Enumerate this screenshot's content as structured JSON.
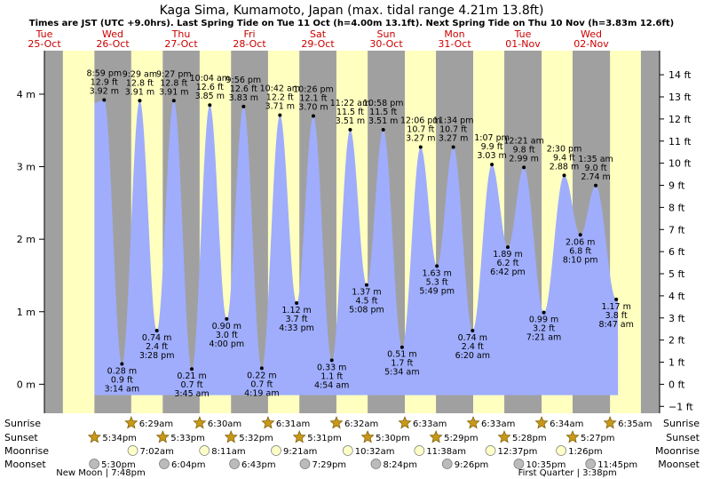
{
  "chart_data": {
    "type": "area",
    "title": "Kaga Sima, Kumamoto, Japan (max. tidal range 4.21m 13.8ft)",
    "subtitle": "Times are JST (UTC +9.0hrs). Last Spring Tide on Tue 11 Oct (h=4.00m 13.1ft). Next Spring Tide on Thu 10 Nov (h=3.83m 12.6ft)",
    "x_unit": "hours from 00:00 Tue 25-Oct",
    "xlim": [
      0,
      216
    ],
    "ylim_m": [
      -0.4,
      4.6
    ],
    "ylim_ft": [
      -1.31,
      15.09
    ],
    "y_ticks_m": [
      {
        "v": 0,
        "label": "0 m"
      },
      {
        "v": 1,
        "label": "1 m"
      },
      {
        "v": 2,
        "label": "2 m"
      },
      {
        "v": 3,
        "label": "3 m"
      },
      {
        "v": 4,
        "label": "4 m"
      }
    ],
    "y_ticks_ft": [
      {
        "v": -1,
        "label": "−1 ft"
      },
      {
        "v": 0,
        "label": "0 ft"
      },
      {
        "v": 1,
        "label": "1 ft"
      },
      {
        "v": 2,
        "label": "2 ft"
      },
      {
        "v": 3,
        "label": "3 ft"
      },
      {
        "v": 4,
        "label": "4 ft"
      },
      {
        "v": 5,
        "label": "5 ft"
      },
      {
        "v": 6,
        "label": "6 ft"
      },
      {
        "v": 7,
        "label": "7 ft"
      },
      {
        "v": 8,
        "label": "8 ft"
      },
      {
        "v": 9,
        "label": "9 ft"
      },
      {
        "v": 10,
        "label": "10 ft"
      },
      {
        "v": 11,
        "label": "11 ft"
      },
      {
        "v": 12,
        "label": "12 ft"
      },
      {
        "v": 13,
        "label": "13 ft"
      },
      {
        "v": 14,
        "label": "14 ft"
      }
    ],
    "days": [
      {
        "day": "Tue",
        "date": "25-Oct",
        "h": 0
      },
      {
        "day": "Wed",
        "date": "26-Oct",
        "h": 24
      },
      {
        "day": "Thu",
        "date": "27-Oct",
        "h": 48
      },
      {
        "day": "Fri",
        "date": "28-Oct",
        "h": 72
      },
      {
        "day": "Sat",
        "date": "29-Oct",
        "h": 96
      },
      {
        "day": "Sun",
        "date": "30-Oct",
        "h": 120
      },
      {
        "day": "Mon",
        "date": "31-Oct",
        "h": 144
      },
      {
        "day": "Tue",
        "date": "01-Nov",
        "h": 168
      },
      {
        "day": "Wed",
        "date": "02-Nov",
        "h": 192
      }
    ],
    "night_bands": [
      [
        -1,
        6.48
      ],
      [
        17.57,
        30.48
      ],
      [
        41.55,
        54.5
      ],
      [
        65.53,
        78.52
      ],
      [
        89.52,
        102.53
      ],
      [
        113.5,
        126.55
      ],
      [
        137.48,
        150.55
      ],
      [
        161.47,
        174.57
      ],
      [
        185.45,
        198.58
      ],
      [
        209.43,
        217
      ]
    ],
    "tides": [
      {
        "t": 20.98,
        "h": 3.92,
        "time": "8:59 pm",
        "ft": "12.9 ft",
        "m": "3.92 m",
        "type": "high"
      },
      {
        "t": 27.23,
        "h": 0.28,
        "time": "3:14 am",
        "ft": "0.9 ft",
        "m": "0.28 m",
        "type": "low"
      },
      {
        "t": 33.48,
        "h": 3.91,
        "time": "9:29 am",
        "ft": "12.8 ft",
        "m": "3.91 m",
        "type": "high"
      },
      {
        "t": 39.47,
        "h": 0.74,
        "time": "3:28 pm",
        "ft": "2.4 ft",
        "m": "0.74 m",
        "type": "low"
      },
      {
        "t": 45.45,
        "h": 3.91,
        "time": "9:27 pm",
        "ft": "12.8 ft",
        "m": "3.91 m",
        "type": "high"
      },
      {
        "t": 51.75,
        "h": 0.21,
        "time": "3:45 am",
        "ft": "0.7 ft",
        "m": "0.21 m",
        "type": "low"
      },
      {
        "t": 58.07,
        "h": 3.85,
        "time": "10:04 am",
        "ft": "12.6 ft",
        "m": "3.85 m",
        "type": "high"
      },
      {
        "t": 64.0,
        "h": 0.9,
        "time": "4:00 pm",
        "ft": "3.0 ft",
        "m": "0.90 m",
        "type": "low"
      },
      {
        "t": 69.93,
        "h": 3.83,
        "time": "9:56 pm",
        "ft": "12.6 ft",
        "m": "3.83 m",
        "type": "high"
      },
      {
        "t": 76.32,
        "h": 0.22,
        "time": "4:19 am",
        "ft": "0.7 ft",
        "m": "0.22 m",
        "type": "low"
      },
      {
        "t": 82.7,
        "h": 3.71,
        "time": "10:42 am",
        "ft": "12.2 ft",
        "m": "3.71 m",
        "type": "high"
      },
      {
        "t": 88.55,
        "h": 1.12,
        "time": "4:33 pm",
        "ft": "3.7 ft",
        "m": "1.12 m",
        "type": "low"
      },
      {
        "t": 94.43,
        "h": 3.7,
        "time": "10:26 pm",
        "ft": "12.1 ft",
        "m": "3.70 m",
        "type": "high"
      },
      {
        "t": 100.9,
        "h": 0.33,
        "time": "4:54 am",
        "ft": "1.1 ft",
        "m": "0.33 m",
        "type": "low"
      },
      {
        "t": 107.37,
        "h": 3.51,
        "time": "11:22 am",
        "ft": "11.5 ft",
        "m": "3.51 m",
        "type": "high"
      },
      {
        "t": 113.13,
        "h": 1.37,
        "time": "5:08 pm",
        "ft": "4.5 ft",
        "m": "1.37 m",
        "type": "low"
      },
      {
        "t": 118.97,
        "h": 3.51,
        "time": "10:58 pm",
        "ft": "11.5 ft",
        "m": "3.51 m",
        "type": "high"
      },
      {
        "t": 125.57,
        "h": 0.51,
        "time": "5:34 am",
        "ft": "1.7 ft",
        "m": "0.51 m",
        "type": "low"
      },
      {
        "t": 132.1,
        "h": 3.27,
        "time": "12:06 pm",
        "ft": "10.7 ft",
        "m": "3.27 m",
        "type": "high"
      },
      {
        "t": 137.82,
        "h": 1.63,
        "time": "5:49 pm",
        "ft": "5.3 ft",
        "m": "1.63 m",
        "type": "low"
      },
      {
        "t": 143.57,
        "h": 3.27,
        "time": "11:34 pm",
        "ft": "10.7 ft",
        "m": "3.27 m",
        "type": "high"
      },
      {
        "t": 150.33,
        "h": 0.74,
        "time": "6:20 am",
        "ft": "2.4 ft",
        "m": "0.74 m",
        "type": "low"
      },
      {
        "t": 157.12,
        "h": 3.03,
        "time": "1:07 pm",
        "ft": "9.9 ft",
        "m": "3.03 m",
        "type": "high"
      },
      {
        "t": 162.7,
        "h": 1.89,
        "time": "6:42 pm",
        "ft": "6.2 ft",
        "m": "1.89 m",
        "type": "low"
      },
      {
        "t": 168.35,
        "h": 2.99,
        "time": "12:21 am",
        "ft": "9.8 ft",
        "m": "2.99 m",
        "type": "high"
      },
      {
        "t": 175.35,
        "h": 0.99,
        "time": "7:21 am",
        "ft": "3.2 ft",
        "m": "0.99 m",
        "type": "low"
      },
      {
        "t": 182.5,
        "h": 2.88,
        "time": "2:30 pm",
        "ft": "9.4 ft",
        "m": "2.88 m",
        "type": "high"
      },
      {
        "t": 188.17,
        "h": 2.06,
        "time": "8:10 pm",
        "ft": "6.8 ft",
        "m": "2.06 m",
        "type": "low"
      },
      {
        "t": 193.58,
        "h": 2.74,
        "time": "1:35 am",
        "ft": "9.0 ft",
        "m": "2.74 m",
        "type": "high"
      },
      {
        "t": 200.78,
        "h": 1.17,
        "time": "8:47 am",
        "ft": "3.8 ft",
        "m": "1.17 m",
        "type": "low"
      }
    ],
    "curve_start": {
      "t": 17.6,
      "h": 3.88
    },
    "curve_end": {
      "t": 201.4,
      "h": 1.15
    },
    "row_labels": [
      "Sunrise",
      "Sunset",
      "Moonrise",
      "Moonset"
    ],
    "sunrise": [
      {
        "t": 30.48,
        "time": "6:29am"
      },
      {
        "t": 54.5,
        "time": "6:30am"
      },
      {
        "t": 78.52,
        "time": "6:31am"
      },
      {
        "t": 102.53,
        "time": "6:32am"
      },
      {
        "t": 126.55,
        "time": "6:33am"
      },
      {
        "t": 150.55,
        "time": "6:33am"
      },
      {
        "t": 174.57,
        "time": "6:34am"
      },
      {
        "t": 198.58,
        "time": "6:35am"
      }
    ],
    "sunset": [
      {
        "t": 17.57,
        "time": "5:34pm"
      },
      {
        "t": 41.55,
        "time": "5:33pm"
      },
      {
        "t": 65.53,
        "time": "5:32pm"
      },
      {
        "t": 89.52,
        "time": "5:31pm"
      },
      {
        "t": 113.5,
        "time": "5:30pm"
      },
      {
        "t": 137.48,
        "time": "5:29pm"
      },
      {
        "t": 161.47,
        "time": "5:28pm"
      },
      {
        "t": 185.45,
        "time": "5:27pm"
      }
    ],
    "moonrise": [
      {
        "t": 31.03,
        "time": "7:02am"
      },
      {
        "t": 56.18,
        "time": "8:11am"
      },
      {
        "t": 81.35,
        "time": "9:21am"
      },
      {
        "t": 106.53,
        "time": "10:32am"
      },
      {
        "t": 131.63,
        "time": "11:38am"
      },
      {
        "t": 156.62,
        "time": "12:37pm"
      },
      {
        "t": 181.43,
        "time": "1:26pm"
      }
    ],
    "moonset": [
      {
        "t": 17.5,
        "time": "5:30pm"
      },
      {
        "t": 42.07,
        "time": "6:04pm"
      },
      {
        "t": 66.72,
        "time": "6:43pm"
      },
      {
        "t": 91.48,
        "time": "7:29pm"
      },
      {
        "t": 116.4,
        "time": "8:24pm"
      },
      {
        "t": 141.43,
        "time": "9:26pm"
      },
      {
        "t": 166.58,
        "time": "10:35pm"
      },
      {
        "t": 191.75,
        "time": "11:45pm"
      }
    ],
    "moon_phases": [
      {
        "t": 19.8,
        "text": "New Moon | 7:48pm"
      },
      {
        "t": 183.63,
        "text": "First Quarter | 3:38pm"
      }
    ],
    "colors": {
      "day": "#ffffc0",
      "night": "#a0a0a0",
      "tide": "#9fadfc",
      "day_label": "#cc0000",
      "star": "#c89818",
      "moonrise": "#ffffc8",
      "moonset": "#bbbbbb"
    }
  }
}
